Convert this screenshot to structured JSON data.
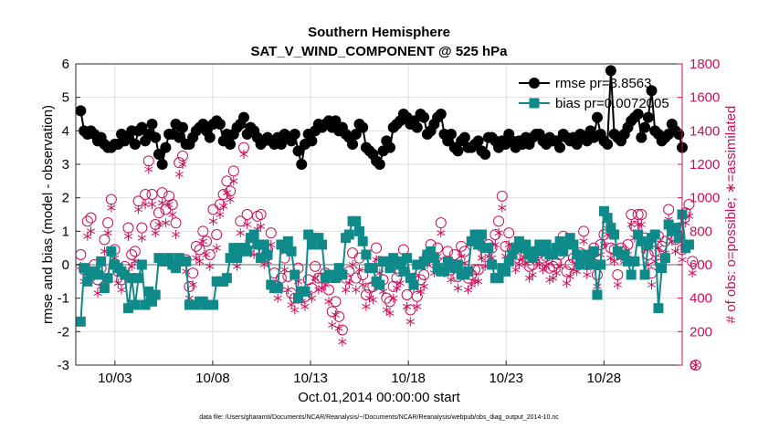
{
  "chart_data": {
    "type": "line",
    "title": "Southern Hemisphere",
    "subtitle": "SAT_V_WIND_COMPONENT @ 525 hPa",
    "xlabel": "Oct.01,2014 00:00:00 start",
    "ylabel": "rmse and bias (model - observation)",
    "y2label": "# of obs: o=possible; ∗=assimilated",
    "footnote": "data file: /Users/gharamti/Documents/NCAR/Reanalysis/~/Documents/NCAR/Reanalysis/webpub/obs_diag_output_2014-10.nc",
    "xlim": [
      1.0,
      32.0
    ],
    "ylim": [
      -3,
      6
    ],
    "y2lim": [
      0,
      1800
    ],
    "x_ticks": [
      3,
      8,
      13,
      18,
      23,
      28
    ],
    "x_tick_labels": [
      "10/03",
      "10/08",
      "10/13",
      "10/18",
      "10/23",
      "10/28"
    ],
    "y_ticks": [
      -3,
      -2,
      -1,
      0,
      1,
      2,
      3,
      4,
      5,
      6
    ],
    "y2_ticks": [
      0,
      200,
      400,
      600,
      800,
      1000,
      1200,
      1400,
      1600,
      1800
    ],
    "grid": true,
    "legend": [
      "rmse pr=3.8563",
      "bias pr=0.0072005"
    ],
    "legend_position": "top-right",
    "colors": {
      "rmse": "#000000",
      "bias": "#0f8a8a",
      "obs": "#c8105a",
      "zero_line": "#b4b4b4"
    },
    "series": [
      {
        "name": "rmse",
        "axis": "left",
        "values": [
          4.6,
          4.0,
          3.9,
          4.0,
          3.9,
          3.7,
          3.8,
          3.6,
          3.5,
          3.5,
          3.6,
          3.6,
          3.9,
          3.7,
          3.8,
          4.0,
          3.6,
          4.0,
          4.1,
          3.7,
          3.9,
          4.2,
          3.8,
          3.3,
          3.0,
          3.5,
          3.9,
          3.9,
          4.2,
          3.8,
          4.1,
          3.6,
          3.6,
          3.8,
          4.0,
          4.1,
          4.2,
          4.0,
          3.8,
          4.2,
          4.3,
          4.2,
          3.7,
          3.9,
          3.6,
          3.9,
          4.1,
          4.2,
          4.4,
          3.9,
          4.1,
          4.0,
          3.8,
          3.6,
          3.7,
          3.8,
          3.7,
          3.6,
          3.8,
          3.6,
          3.9,
          3.8,
          3.7,
          3.9,
          3.4,
          3.0,
          3.6,
          3.9,
          3.7,
          4.0,
          4.2,
          4.1,
          4.2,
          4.3,
          4.1,
          4.3,
          4.0,
          4.1,
          3.9,
          3.8,
          3.6,
          3.9,
          4.2,
          4.1,
          3.5,
          3.4,
          3.3,
          3.1,
          3.0,
          3.4,
          3.7,
          3.5,
          4.1,
          4.2,
          4.3,
          4.5,
          4.4,
          4.2,
          4.3,
          4.1,
          4.5,
          4.4,
          3.9,
          4.0,
          4.2,
          4.4,
          4.5,
          3.9,
          3.7,
          3.9,
          3.5,
          3.4,
          3.7,
          3.8,
          3.5,
          3.5,
          3.6,
          3.7,
          3.4,
          3.3,
          3.8,
          3.8,
          3.7,
          3.5,
          3.7,
          3.6,
          3.9,
          3.7,
          3.5,
          3.7,
          3.6,
          3.8,
          3.6,
          3.8,
          3.9,
          3.9,
          3.7,
          3.6,
          3.8,
          3.7,
          3.7,
          3.5,
          3.9,
          3.8,
          3.7,
          3.8,
          3.6,
          3.9,
          3.8,
          3.7,
          4.0,
          3.8,
          4.4,
          3.9,
          3.7,
          3.6,
          5.8,
          3.9,
          3.8,
          3.7,
          3.9,
          4.1,
          4.3,
          4.4,
          4.5,
          3.8,
          4.1,
          4.4,
          5.2,
          4.0,
          3.9,
          3.7,
          3.8,
          3.9,
          4.2,
          4.0,
          3.9,
          3.5
        ]
      },
      {
        "name": "bias",
        "axis": "left",
        "values": [
          -1.7,
          -0.1,
          -0.5,
          -0.2,
          -0.2,
          -0.3,
          0.1,
          -0.7,
          -0.4,
          0.4,
          0.0,
          -0.1,
          -0.2,
          -0.3,
          -1.3,
          -0.4,
          -1.2,
          -0.4,
          0.0,
          -1.2,
          -0.8,
          -1.1,
          -0.9,
          0.2,
          0.1,
          0.1,
          0.2,
          0.0,
          -0.1,
          0.2,
          0.1,
          0.1,
          -1.2,
          -1.2,
          -1.2,
          -1.1,
          -1.1,
          -1.2,
          -1.2,
          -1.2,
          -0.5,
          -0.5,
          -0.5,
          -0.4,
          0.2,
          0.5,
          0.2,
          0.5,
          0.5,
          0.4,
          0.8,
          0.9,
          0.6,
          0.2,
          0.6,
          0.3,
          -0.6,
          -0.7,
          -0.7,
          0.6,
          0.5,
          0.7,
          0.4,
          -0.3,
          -1.0,
          -0.8,
          -0.8,
          0.9,
          0.6,
          0.8,
          0.8,
          0.6,
          -0.4,
          -0.3,
          -0.3,
          -0.4,
          -0.1,
          -0.3,
          0.8,
          0.9,
          1.3,
          1.3,
          1.0,
          0.7,
          0.3,
          -0.1,
          -0.1,
          -0.5,
          -0.6,
          0.1,
          0.1,
          -0.1,
          0.2,
          0.1,
          0.0,
          -0.2,
          0.2,
          -0.4,
          -0.6,
          0.0,
          0.0,
          0.1,
          0.3,
          0.4,
          0.2,
          -0.1,
          -0.2,
          -0.2,
          0.1,
          0.0,
          -0.1,
          0.0,
          -0.3,
          -0.3,
          -0.2,
          0.7,
          0.9,
          0.6,
          0.9,
          0.5,
          0.5,
          0.0,
          -0.4,
          -0.4,
          -0.1,
          -0.2,
          0.1,
          0.3,
          0.5,
          0.7,
          0.5,
          0.6,
          0.3,
          0.2,
          0.4,
          0.6,
          0.4,
          0.6,
          0.3,
          0.3,
          0.5,
          0.7,
          0.4,
          0.6,
          0.8,
          0.6,
          0.3,
          0.0,
          0.2,
          0.3,
          0.0,
          0.4,
          -0.9,
          0.0,
          1.6,
          1.4,
          1.1,
          0.9,
          0.4,
          0.3,
          0.3,
          0.1,
          -0.3,
          0.1,
          0.9,
          0.7,
          -0.3,
          0.6,
          0.8,
          0.9,
          -1.3,
          -0.1,
          0.2,
          1.2,
          1.0,
          1.1,
          0.8,
          1.5,
          0.5,
          0.6
        ]
      },
      {
        "name": "obs_possible",
        "axis": "right",
        "values": [
          660,
          570,
          860,
          880,
          600,
          510,
          580,
          750,
          850,
          990,
          690,
          560,
          510,
          590,
          820,
          660,
          680,
          980,
          820,
          1020,
          1220,
          1020,
          840,
          910,
          1030,
          930,
          1010,
          960,
          850,
          1210,
          1250,
          630,
          470,
          550,
          710,
          690,
          800,
          740,
          660,
          930,
          780,
          960,
          1020,
          1100,
          1040,
          1160,
          650,
          860,
          1300,
          900,
          740,
          730,
          890,
          900,
          670,
          690,
          790,
          550,
          470,
          520,
          640,
          530,
          430,
          400,
          580,
          440,
          410,
          510,
          460,
          590,
          520,
          520,
          550,
          450,
          320,
          380,
          290,
          210,
          520,
          560,
          670,
          520,
          640,
          540,
          420,
          460,
          470,
          700,
          620,
          510,
          400,
          380,
          470,
          520,
          560,
          690,
          420,
          330,
          520,
          410,
          510,
          540,
          660,
          720,
          610,
          700,
          850,
          610,
          680,
          570,
          660,
          530,
          710,
          680,
          520,
          540,
          570,
          570,
          710,
          650,
          720,
          700,
          780,
          860,
          1010,
          710,
          790,
          690,
          640,
          660,
          700,
          670,
          590,
          600,
          680,
          670,
          640,
          650,
          580,
          590,
          610,
          660,
          770,
          560,
          600,
          640,
          630,
          670,
          800,
          600,
          660,
          700,
          540,
          720,
          780,
          850,
          700,
          690,
          540,
          700,
          680,
          720,
          900,
          830,
          900,
          900,
          760,
          660,
          550,
          680,
          770,
          710,
          740,
          930,
          810,
          750,
          820,
          690,
          910,
          960,
          620,
          0
        ]
      },
      {
        "name": "obs_assimilated",
        "axis": "right",
        "values": [
          590,
          500,
          770,
          800,
          530,
          430,
          470,
          680,
          790,
          940,
          640,
          490,
          450,
          520,
          770,
          590,
          620,
          930,
          760,
          960,
          1170,
          960,
          790,
          840,
          970,
          850,
          960,
          900,
          780,
          1140,
          1200,
          560,
          400,
          480,
          640,
          620,
          740,
          660,
          590,
          860,
          700,
          900,
          950,
          1030,
          990,
          1100,
          590,
          790,
          1260,
          840,
          670,
          660,
          810,
          830,
          600,
          620,
          720,
          480,
          400,
          450,
          570,
          450,
          360,
          330,
          500,
          380,
          350,
          430,
          400,
          520,
          450,
          460,
          480,
          380,
          240,
          300,
          220,
          140,
          450,
          490,
          600,
          450,
          570,
          480,
          350,
          400,
          390,
          630,
          550,
          440,
          330,
          310,
          400,
          460,
          490,
          630,
          350,
          260,
          460,
          350,
          440,
          470,
          600,
          650,
          550,
          650,
          790,
          550,
          620,
          510,
          600,
          460,
          650,
          610,
          450,
          480,
          500,
          500,
          640,
          590,
          650,
          640,
          720,
          790,
          940,
          650,
          720,
          630,
          570,
          600,
          630,
          610,
          520,
          540,
          620,
          600,
          570,
          590,
          510,
          520,
          550,
          590,
          700,
          490,
          530,
          570,
          560,
          610,
          740,
          540,
          590,
          640,
          470,
          660,
          720,
          780,
          640,
          620,
          480,
          640,
          620,
          660,
          840,
          760,
          840,
          840,
          690,
          600,
          480,
          620,
          700,
          640,
          670,
          870,
          740,
          680,
          760,
          630,
          850,
          890,
          550,
          0
        ]
      }
    ]
  }
}
